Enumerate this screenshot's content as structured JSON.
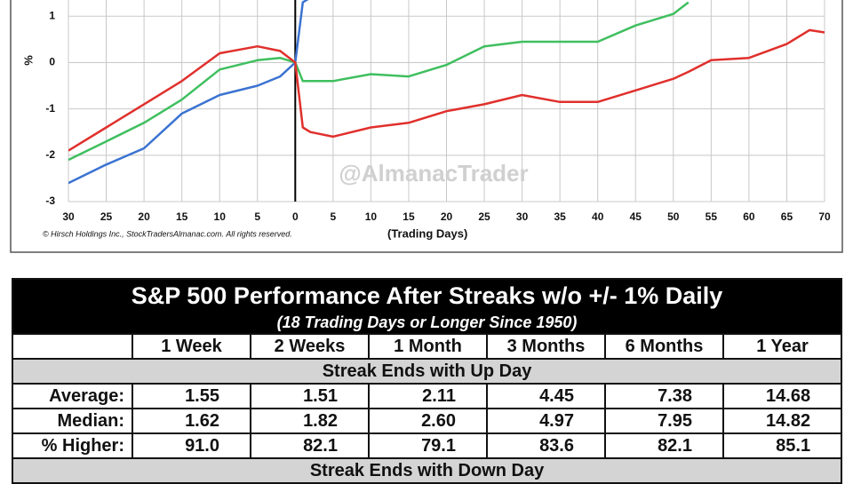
{
  "chart_data": {
    "type": "line",
    "y_label": "%",
    "x_label": "(Trading Days)",
    "copyright": "© Hirsch Holdings Inc., StockTradersAlmanac.com. All rights reserved.",
    "watermark": "@AlmanacTrader",
    "x": [
      -30,
      -25,
      -20,
      -15,
      -10,
      -5,
      -2,
      0,
      1,
      2,
      5,
      10,
      15,
      20,
      25,
      30,
      35,
      40,
      45,
      50,
      52,
      55,
      60,
      65,
      68,
      70
    ],
    "series": [
      {
        "color": "#3b73d1",
        "values": [
          -2.6,
          -2.2,
          -1.85,
          -1.1,
          -0.7,
          -0.5,
          -0.3,
          0,
          1.3,
          1.4,
          null,
          null,
          null,
          null,
          null,
          null,
          null,
          null,
          null,
          null,
          null,
          null,
          null,
          null,
          null,
          null
        ]
      },
      {
        "color": "#3fbf5f",
        "values": [
          -2.1,
          -1.7,
          -1.3,
          -0.8,
          -0.15,
          0.05,
          0.1,
          0,
          -0.4,
          -0.4,
          -0.4,
          -0.25,
          -0.3,
          -0.05,
          0.35,
          0.45,
          0.45,
          0.45,
          0.8,
          1.05,
          1.3,
          null,
          null,
          null,
          null,
          null
        ]
      },
      {
        "color": "#e0302c",
        "values": [
          -1.9,
          -1.4,
          -0.9,
          -0.4,
          0.2,
          0.35,
          0.25,
          0,
          -1.4,
          -1.5,
          -1.6,
          -1.4,
          -1.3,
          -1.05,
          -0.9,
          -0.7,
          -0.85,
          -0.85,
          -0.6,
          -0.35,
          -0.2,
          0.05,
          0.1,
          0.4,
          0.7,
          0.65
        ]
      }
    ],
    "xlim": [
      -30,
      70
    ],
    "xticks": [
      {
        "value": -30,
        "label": "30"
      },
      {
        "value": -25,
        "label": "25"
      },
      {
        "value": -20,
        "label": "20"
      },
      {
        "value": -15,
        "label": "15"
      },
      {
        "value": -10,
        "label": "10"
      },
      {
        "value": -5,
        "label": "5"
      },
      0,
      5,
      10,
      15,
      20,
      25,
      30,
      35,
      40,
      45,
      50,
      55,
      60,
      65,
      70
    ],
    "ylim": [
      -3,
      1.35
    ],
    "yticks": [
      -3,
      -2,
      -1,
      0,
      1
    ],
    "reference_x": 0,
    "grid": true
  },
  "table": {
    "title": "S&P 500 Performance After Streaks w/o +/- 1% Daily",
    "subtitle": "(18 Trading Days or Longer Since 1950)",
    "columns": [
      "1 Week",
      "2 Weeks",
      "1 Month",
      "3 Months",
      "6 Months",
      "1 Year"
    ],
    "sections": [
      {
        "title": "Streak Ends with Up Day",
        "rows": [
          {
            "label": "Average:",
            "values": [
              "1.55",
              "1.51",
              "2.11",
              "4.45",
              "7.38",
              "14.68"
            ]
          },
          {
            "label": "Median:",
            "values": [
              "1.62",
              "1.82",
              "2.60",
              "4.97",
              "7.95",
              "14.82"
            ]
          },
          {
            "label": "% Higher:",
            "values": [
              "91.0",
              "82.1",
              "79.1",
              "83.6",
              "82.1",
              "85.1"
            ]
          }
        ]
      },
      {
        "title": "Streak Ends with Down Day",
        "rows": []
      }
    ]
  }
}
